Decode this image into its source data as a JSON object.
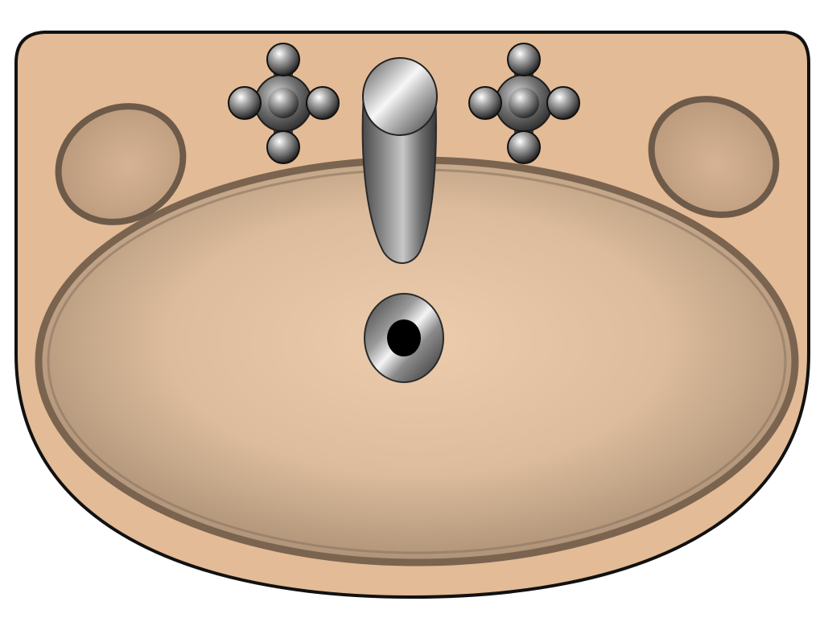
{
  "illustration": {
    "subject": "bathroom-sink",
    "view": "top-down",
    "elements": [
      "sink-body",
      "sink-basin",
      "left-soap-dish",
      "right-soap-dish",
      "left-tap-handle",
      "right-tap-handle",
      "faucet-spout",
      "drain"
    ]
  },
  "colors": {
    "background": "#ffffff",
    "sink_body": "#e3bb96",
    "outline": "#111111",
    "basin_rim": "#7a6450",
    "basin_center": "#ecccac",
    "basin_edge": "#a58a70",
    "soap_dish_fill": "#caa585",
    "chrome_light": "#f2f2f2",
    "chrome_mid": "#9a9a9a",
    "chrome_dark": "#2e2e2e",
    "drain_hole": "#000000"
  }
}
